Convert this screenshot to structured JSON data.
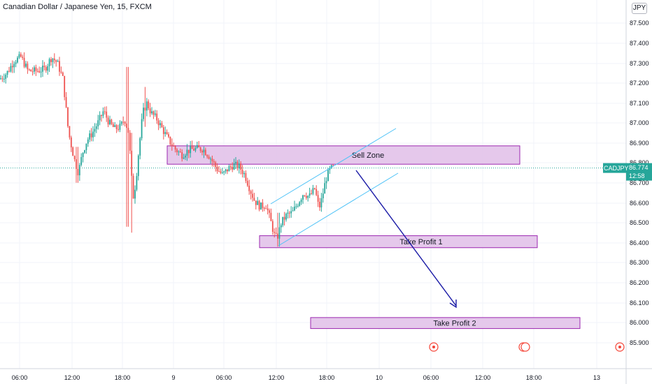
{
  "header": {
    "title": "Canadian Dollar / Japanese Yen, 15, FXCM",
    "currency_button": "JPY"
  },
  "current": {
    "symbol": "CADJPY",
    "price": "86.774",
    "countdown": "12:58",
    "color": "#26a69a"
  },
  "zones": [
    {
      "label": "Sell Zone",
      "from": 86.793,
      "to": 86.885
    },
    {
      "label": "Take Profit 1",
      "from": 86.375,
      "to": 86.435
    },
    {
      "label": "Take Profit 2",
      "from": 85.97,
      "to": 86.025
    }
  ],
  "colors": {
    "up": "#26a69a",
    "down": "#ef5350",
    "zone_fill": "#e1bee7",
    "zone_border": "#9c27b0",
    "channel": "#4fc3f7",
    "arrow": "#1a1aa6",
    "grid": "#f0f3fa",
    "axis_text": "#131722"
  },
  "chart_data": {
    "type": "candlestick",
    "title": "Canadian Dollar / Japanese Yen, 15, FXCM",
    "symbol": "CADJPY",
    "timeframe": "15",
    "source": "FXCM",
    "ylim": [
      85.85,
      87.6
    ],
    "y_ticks": [
      "85.900",
      "86.000",
      "86.100",
      "86.200",
      "86.300",
      "86.400",
      "86.500",
      "86.600",
      "86.700",
      "86.800",
      "86.900",
      "87.000",
      "87.100",
      "87.200",
      "87.300",
      "87.400",
      "87.500"
    ],
    "x_ticks": [
      "06:00",
      "12:00",
      "18:00",
      "9",
      "06:00",
      "12:00",
      "18:00",
      "10",
      "06:00",
      "12:00",
      "18:00",
      "13"
    ],
    "close_path": [
      {
        "x": 0,
        "y": 87.22
      },
      {
        "x": 10,
        "y": 87.25
      },
      {
        "x": 20,
        "y": 87.31
      },
      {
        "x": 30,
        "y": 87.33
      },
      {
        "x": 40,
        "y": 87.26
      },
      {
        "x": 52,
        "y": 87.26
      },
      {
        "x": 64,
        "y": 87.27
      },
      {
        "x": 74,
        "y": 87.33
      },
      {
        "x": 82,
        "y": 87.3
      },
      {
        "x": 90,
        "y": 87.22
      },
      {
        "x": 98,
        "y": 86.95
      },
      {
        "x": 106,
        "y": 86.82
      },
      {
        "x": 112,
        "y": 86.75
      },
      {
        "x": 118,
        "y": 86.85
      },
      {
        "x": 124,
        "y": 86.91
      },
      {
        "x": 132,
        "y": 86.95
      },
      {
        "x": 140,
        "y": 87.0
      },
      {
        "x": 148,
        "y": 87.06
      },
      {
        "x": 156,
        "y": 87.0
      },
      {
        "x": 164,
        "y": 86.97
      },
      {
        "x": 172,
        "y": 86.98
      },
      {
        "x": 178,
        "y": 87.02
      },
      {
        "x": 184,
        "y": 86.95
      },
      {
        "x": 190,
        "y": 86.62
      },
      {
        "x": 194,
        "y": 86.7
      },
      {
        "x": 198,
        "y": 86.85
      },
      {
        "x": 204,
        "y": 87.05
      },
      {
        "x": 210,
        "y": 87.1
      },
      {
        "x": 216,
        "y": 87.05
      },
      {
        "x": 224,
        "y": 87.02
      },
      {
        "x": 232,
        "y": 86.97
      },
      {
        "x": 240,
        "y": 86.92
      },
      {
        "x": 250,
        "y": 86.87
      },
      {
        "x": 260,
        "y": 86.84
      },
      {
        "x": 268,
        "y": 86.86
      },
      {
        "x": 278,
        "y": 86.87
      },
      {
        "x": 290,
        "y": 86.87
      },
      {
        "x": 300,
        "y": 86.83
      },
      {
        "x": 310,
        "y": 86.77
      },
      {
        "x": 318,
        "y": 86.74
      },
      {
        "x": 326,
        "y": 86.77
      },
      {
        "x": 334,
        "y": 86.79
      },
      {
        "x": 342,
        "y": 86.78
      },
      {
        "x": 350,
        "y": 86.74
      },
      {
        "x": 358,
        "y": 86.66
      },
      {
        "x": 364,
        "y": 86.61
      },
      {
        "x": 372,
        "y": 86.58
      },
      {
        "x": 380,
        "y": 86.59
      },
      {
        "x": 386,
        "y": 86.52
      },
      {
        "x": 392,
        "y": 86.44
      },
      {
        "x": 396,
        "y": 86.42
      },
      {
        "x": 402,
        "y": 86.5
      },
      {
        "x": 410,
        "y": 86.54
      },
      {
        "x": 418,
        "y": 86.55
      },
      {
        "x": 426,
        "y": 86.6
      },
      {
        "x": 434,
        "y": 86.65
      },
      {
        "x": 442,
        "y": 86.63
      },
      {
        "x": 450,
        "y": 86.67
      },
      {
        "x": 456,
        "y": 86.57
      },
      {
        "x": 460,
        "y": 86.62
      },
      {
        "x": 466,
        "y": 86.72
      },
      {
        "x": 472,
        "y": 86.77
      },
      {
        "x": 477,
        "y": 86.774
      }
    ]
  }
}
